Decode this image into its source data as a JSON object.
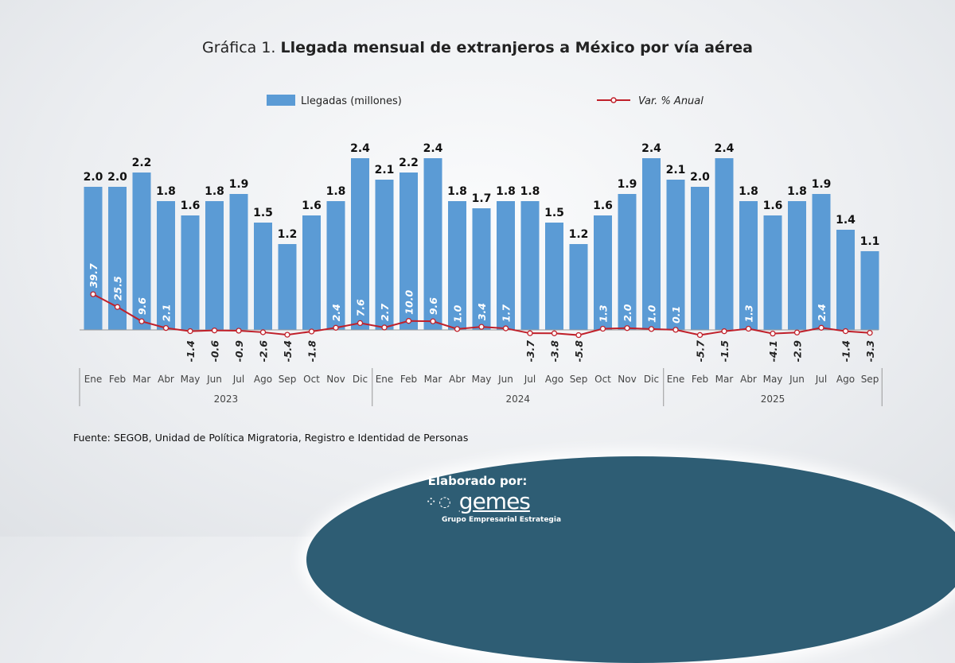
{
  "title_prefix": "Gráfica 1.",
  "title": "Llegada mensual de extranjeros a México por vía aérea",
  "chart_data": {
    "type": "bar",
    "title": "Gráfica 1. Llegada mensual de extranjeros a México por vía aérea",
    "categories": [
      "Ene",
      "Feb",
      "Mar",
      "Abr",
      "May",
      "Jun",
      "Jul",
      "Ago",
      "Sep",
      "Oct",
      "Nov",
      "Dic",
      "Ene",
      "Feb",
      "Mar",
      "Abr",
      "May",
      "Jun",
      "Jul",
      "Ago",
      "Sep",
      "Oct",
      "Nov",
      "Dic",
      "Ene",
      "Feb",
      "Mar",
      "Abr",
      "May",
      "Jun",
      "Jul",
      "Ago",
      "Sep"
    ],
    "groups": [
      {
        "label": "2023",
        "count": 12
      },
      {
        "label": "2024",
        "count": 12
      },
      {
        "label": "2025",
        "count": 9
      }
    ],
    "series": [
      {
        "name": "Llegadas (millones)",
        "type": "bar",
        "color": "#5b9bd5",
        "values": [
          2.0,
          2.0,
          2.2,
          1.8,
          1.6,
          1.8,
          1.9,
          1.5,
          1.2,
          1.6,
          1.8,
          2.4,
          2.1,
          2.2,
          2.4,
          1.8,
          1.7,
          1.8,
          1.8,
          1.5,
          1.2,
          1.6,
          1.9,
          2.4,
          2.1,
          2.0,
          2.4,
          1.8,
          1.6,
          1.8,
          1.9,
          1.4,
          1.1
        ]
      },
      {
        "name": "Var. % Anual",
        "type": "line",
        "color": "#c0202a",
        "values": [
          39.7,
          25.5,
          9.6,
          2.1,
          -1.4,
          -0.6,
          -0.9,
          -2.6,
          -5.4,
          -1.8,
          2.4,
          7.6,
          2.7,
          10.0,
          9.6,
          1.0,
          3.4,
          1.7,
          -3.7,
          -3.8,
          -5.8,
          1.3,
          2.0,
          1.0,
          0.1,
          -5.7,
          -1.5,
          1.3,
          -4.1,
          -2.9,
          2.4,
          -1.4,
          -3.3
        ]
      }
    ],
    "legend": "top",
    "grid": false
  },
  "source": "Fuente: SEGOB, Unidad de Política Migratoria, Registro e Identidad de Personas",
  "footer": {
    "elaborated_by": "Elaborado por:",
    "logo_text": "gemes",
    "logo_subtitle": "Grupo Empresarial Estrategia"
  }
}
